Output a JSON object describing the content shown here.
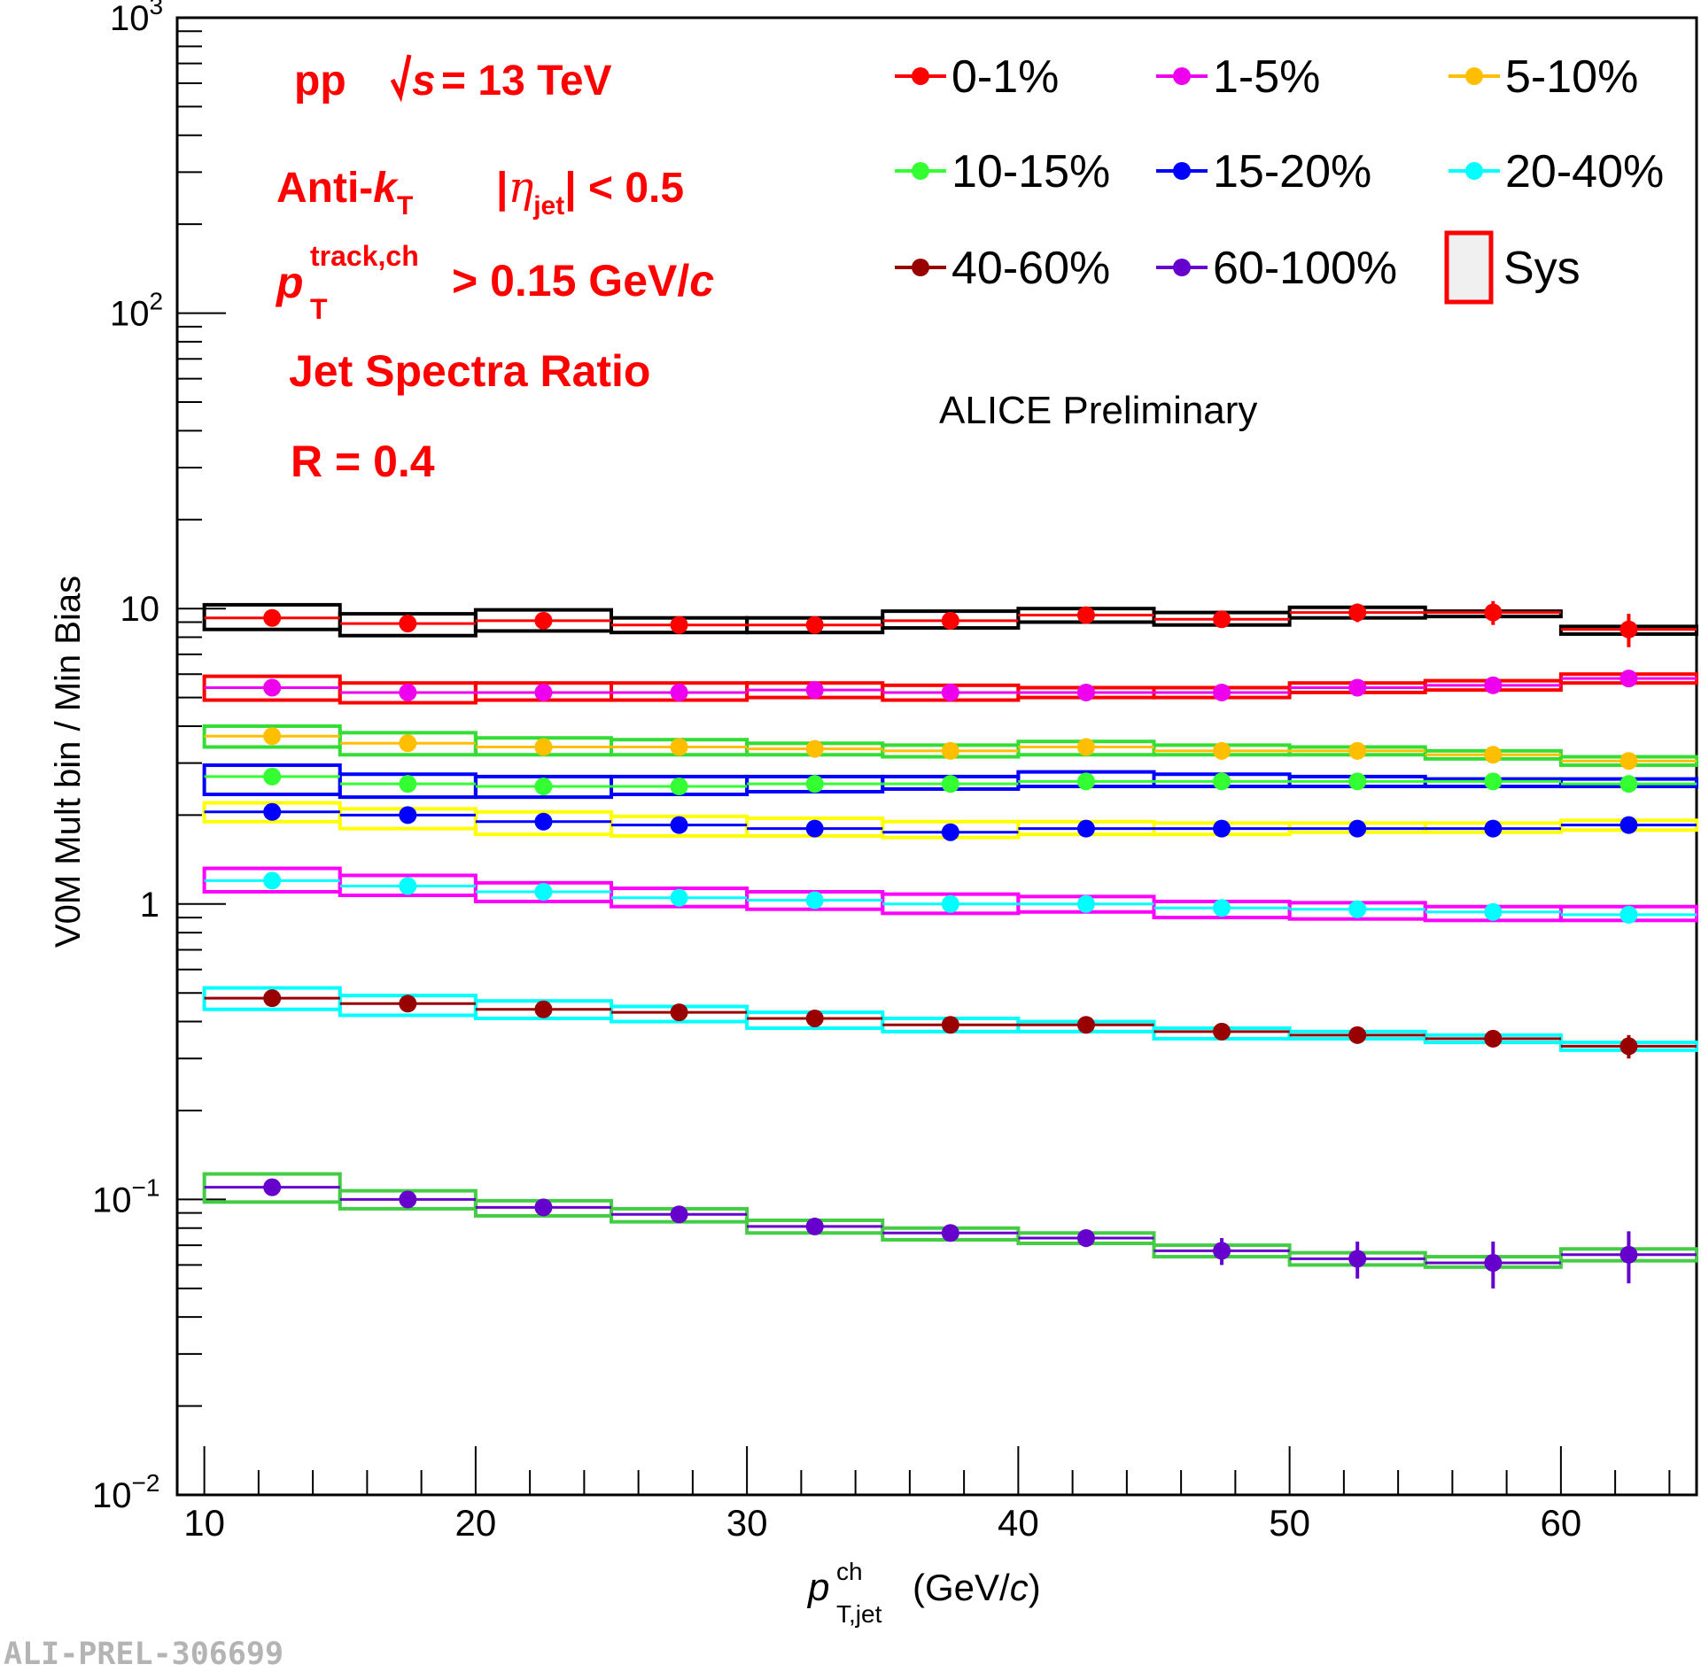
{
  "chart_data": {
    "type": "scatter",
    "title": "Jet Spectra Ratio",
    "xlabel": "p_T,jet^ch (GeV/c)",
    "ylabel": "V0M Mult bin / Min Bias",
    "xlim": [
      9,
      65
    ],
    "ylim": [
      0.01,
      1000
    ],
    "yscale": "log",
    "x_ticks": [
      "10",
      "20",
      "30",
      "40",
      "50",
      "60"
    ],
    "y_ticks": [
      {
        "base": "10",
        "exp": "3"
      },
      {
        "base": "10",
        "exp": "2"
      },
      {
        "base": "10",
        "exp": ""
      },
      {
        "base": "1",
        "exp": ""
      },
      {
        "base": "10",
        "exp": "−1"
      },
      {
        "base": "10",
        "exp": "−2"
      }
    ],
    "bin_edges": [
      10,
      15,
      20,
      25,
      30,
      35,
      40,
      45,
      50,
      55,
      60,
      65
    ],
    "x": [
      12.5,
      17.5,
      22.5,
      27.5,
      32.5,
      37.5,
      42.5,
      47.5,
      52.5,
      57.5,
      62.5
    ],
    "series": [
      {
        "name": "0-1%",
        "color": "#ff0000",
        "sys_color": "#000000",
        "values": [
          9.3,
          8.9,
          9.1,
          8.8,
          8.8,
          9.1,
          9.5,
          9.2,
          9.7,
          9.7,
          8.5
        ],
        "stat_err": [
          0.2,
          0.2,
          0.2,
          0.2,
          0.3,
          0.3,
          0.4,
          0.5,
          0.7,
          0.9,
          1.1
        ],
        "sys_lo": [
          8.5,
          8.1,
          8.4,
          8.3,
          8.3,
          8.6,
          9.0,
          8.8,
          9.3,
          9.4,
          8.2
        ],
        "sys_hi": [
          10.3,
          9.6,
          9.9,
          9.3,
          9.3,
          9.8,
          10.0,
          9.7,
          10.1,
          9.8,
          8.7
        ]
      },
      {
        "name": "1-5%",
        "color": "#ee00ee",
        "sys_color": "#ff0000",
        "values": [
          5.4,
          5.2,
          5.2,
          5.2,
          5.3,
          5.2,
          5.2,
          5.2,
          5.4,
          5.5,
          5.8
        ],
        "stat_err": [
          0.1,
          0.1,
          0.1,
          0.1,
          0.1,
          0.1,
          0.1,
          0.15,
          0.2,
          0.25,
          0.3
        ],
        "sys_lo": [
          4.9,
          4.8,
          4.9,
          4.9,
          5.0,
          4.9,
          5.0,
          5.0,
          5.2,
          5.3,
          5.6
        ],
        "sys_hi": [
          5.9,
          5.6,
          5.6,
          5.6,
          5.6,
          5.5,
          5.4,
          5.4,
          5.6,
          5.7,
          6.0
        ]
      },
      {
        "name": "5-10%",
        "color": "#ffbf00",
        "sys_color": "#33dd33",
        "values": [
          3.7,
          3.5,
          3.4,
          3.4,
          3.35,
          3.3,
          3.4,
          3.3,
          3.3,
          3.2,
          3.05
        ],
        "stat_err": [
          0.05,
          0.05,
          0.05,
          0.05,
          0.05,
          0.05,
          0.07,
          0.08,
          0.1,
          0.12,
          0.15
        ],
        "sys_lo": [
          3.4,
          3.2,
          3.2,
          3.2,
          3.2,
          3.15,
          3.2,
          3.2,
          3.2,
          3.1,
          2.95
        ],
        "sys_hi": [
          4.0,
          3.8,
          3.65,
          3.6,
          3.5,
          3.45,
          3.55,
          3.45,
          3.4,
          3.3,
          3.15
        ]
      },
      {
        "name": "10-15%",
        "color": "#33ff33",
        "sys_color": "#0000ff",
        "values": [
          2.7,
          2.55,
          2.5,
          2.5,
          2.55,
          2.55,
          2.6,
          2.6,
          2.6,
          2.6,
          2.55
        ],
        "stat_err": [
          0.04,
          0.04,
          0.04,
          0.04,
          0.05,
          0.05,
          0.06,
          0.07,
          0.08,
          0.1,
          0.12
        ],
        "sys_lo": [
          2.35,
          2.3,
          2.3,
          2.35,
          2.4,
          2.45,
          2.5,
          2.5,
          2.5,
          2.5,
          2.5
        ],
        "sys_hi": [
          2.95,
          2.75,
          2.7,
          2.7,
          2.7,
          2.7,
          2.8,
          2.75,
          2.7,
          2.65,
          2.65
        ]
      },
      {
        "name": "15-20%",
        "color": "#0000ff",
        "sys_color": "#ffff00",
        "values": [
          2.05,
          2.0,
          1.9,
          1.85,
          1.8,
          1.75,
          1.8,
          1.8,
          1.8,
          1.8,
          1.85
        ],
        "stat_err": [
          0.03,
          0.03,
          0.03,
          0.03,
          0.04,
          0.04,
          0.05,
          0.06,
          0.07,
          0.09,
          0.12
        ],
        "sys_lo": [
          1.9,
          1.8,
          1.72,
          1.7,
          1.7,
          1.68,
          1.72,
          1.72,
          1.75,
          1.75,
          1.78
        ],
        "sys_hi": [
          2.2,
          2.1,
          2.05,
          1.98,
          1.95,
          1.9,
          1.9,
          1.88,
          1.88,
          1.88,
          1.92
        ]
      },
      {
        "name": "20-40%",
        "color": "#00ffff",
        "sys_color": "#ff00ff",
        "values": [
          1.2,
          1.15,
          1.1,
          1.05,
          1.03,
          1.0,
          1.0,
          0.97,
          0.96,
          0.94,
          0.92
        ],
        "stat_err": [
          0.01,
          0.01,
          0.01,
          0.01,
          0.01,
          0.01,
          0.015,
          0.02,
          0.02,
          0.025,
          0.03
        ],
        "sys_lo": [
          1.1,
          1.07,
          1.02,
          0.98,
          0.96,
          0.93,
          0.94,
          0.9,
          0.89,
          0.88,
          0.88
        ],
        "sys_hi": [
          1.32,
          1.25,
          1.18,
          1.13,
          1.1,
          1.08,
          1.06,
          1.02,
          1.01,
          0.98,
          0.98
        ]
      },
      {
        "name": "40-60%",
        "color": "#990000",
        "sys_color": "#00ffff",
        "values": [
          0.48,
          0.46,
          0.44,
          0.43,
          0.41,
          0.39,
          0.39,
          0.37,
          0.36,
          0.35,
          0.33
        ],
        "stat_err": [
          0.005,
          0.005,
          0.005,
          0.006,
          0.007,
          0.008,
          0.01,
          0.012,
          0.015,
          0.02,
          0.03
        ],
        "sys_lo": [
          0.44,
          0.42,
          0.41,
          0.4,
          0.38,
          0.37,
          0.37,
          0.35,
          0.35,
          0.34,
          0.32
        ],
        "sys_hi": [
          0.52,
          0.49,
          0.47,
          0.45,
          0.43,
          0.41,
          0.4,
          0.38,
          0.37,
          0.36,
          0.34
        ]
      },
      {
        "name": "60-100%",
        "color": "#6600cc",
        "sys_color": "#44cc44",
        "values": [
          0.11,
          0.1,
          0.094,
          0.089,
          0.081,
          0.077,
          0.074,
          0.067,
          0.063,
          0.061,
          0.065
        ],
        "stat_err": [
          0.002,
          0.002,
          0.002,
          0.002,
          0.003,
          0.003,
          0.005,
          0.007,
          0.009,
          0.011,
          0.013
        ],
        "sys_lo": [
          0.098,
          0.093,
          0.088,
          0.084,
          0.077,
          0.073,
          0.071,
          0.064,
          0.06,
          0.059,
          0.062
        ],
        "sys_hi": [
          0.122,
          0.107,
          0.099,
          0.093,
          0.085,
          0.08,
          0.077,
          0.07,
          0.066,
          0.064,
          0.068
        ]
      }
    ],
    "legend": {
      "position": "top-right",
      "sys_label": "Sys"
    },
    "annotations": {
      "system": "pp",
      "energy": "= 13 TeV",
      "algo": "Anti-",
      "algo_k": "k",
      "algo_sub": "T",
      "eta_sub": "jet",
      "eta_cut": "| < 0.5",
      "pt_sym": "p",
      "pt_sup": "track,ch",
      "pt_sub": "T",
      "pt_cut": "> 0.15 GeV/",
      "pt_unit": "c",
      "ratio": "Jet Spectra Ratio",
      "radius": "R = 0.4",
      "preliminary": "ALICE Preliminary"
    }
  },
  "watermark": "ALI-PREL-306699"
}
